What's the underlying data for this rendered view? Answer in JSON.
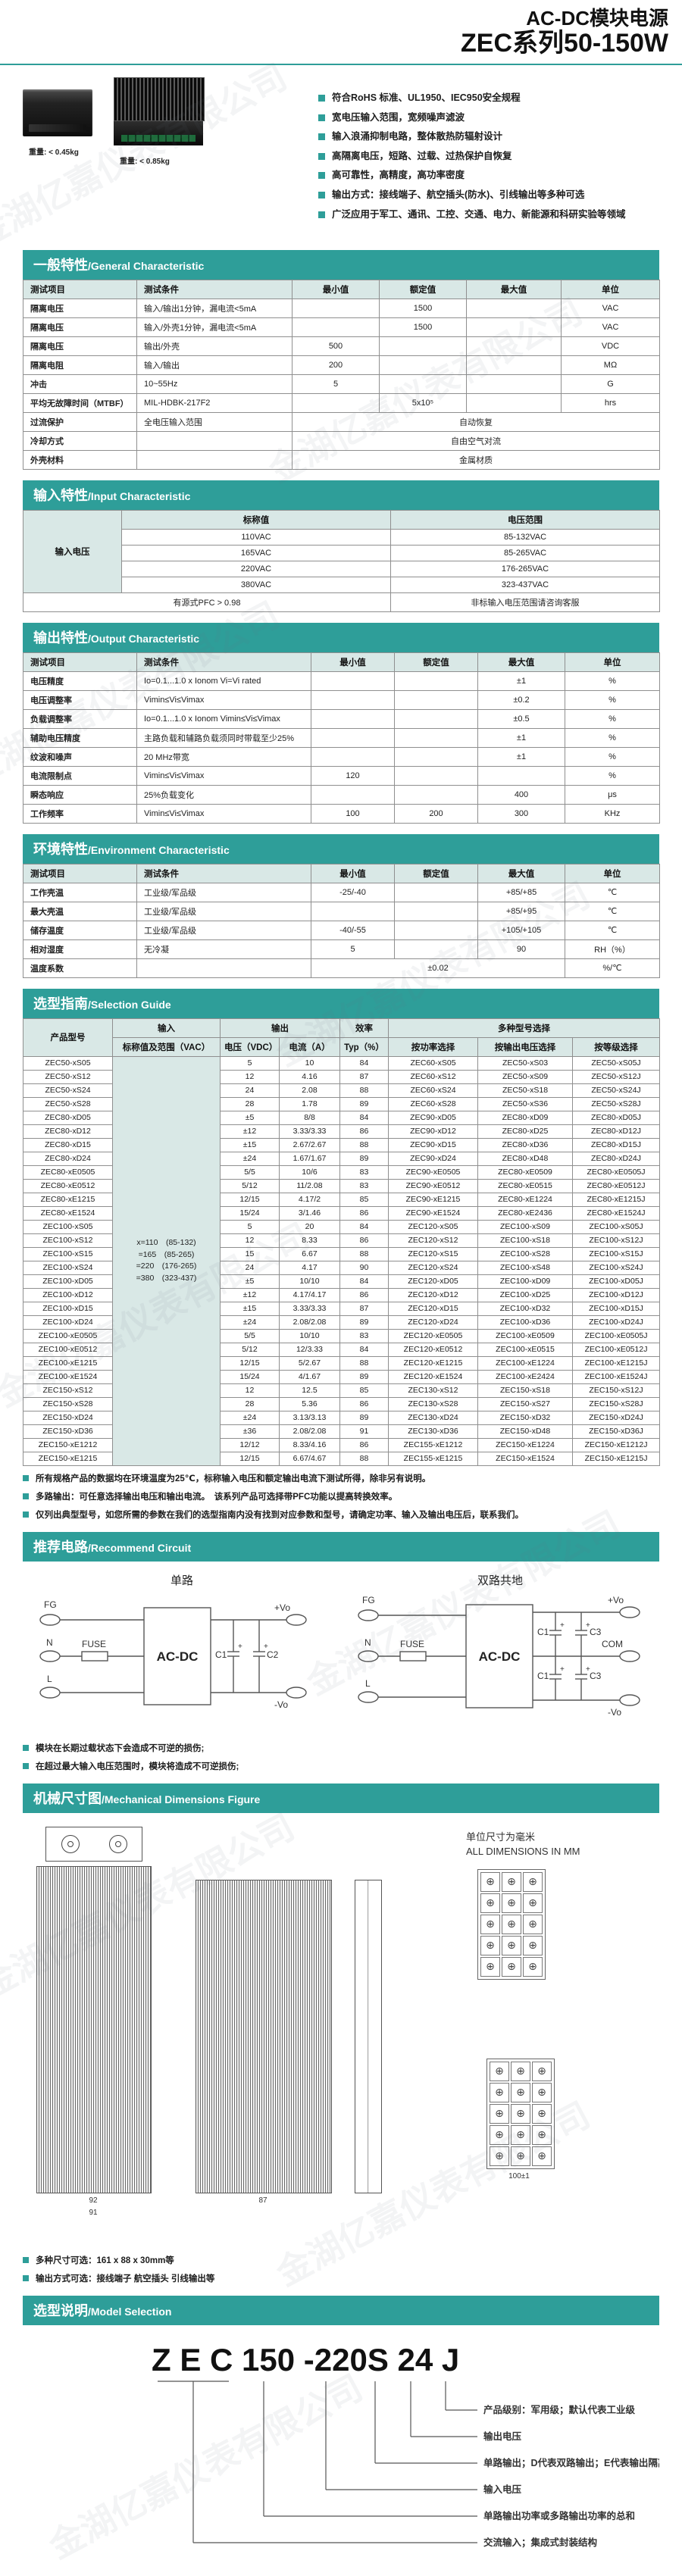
{
  "header": {
    "title_line1": "AC-DC模块电源",
    "title_line2": "ZEC系列50-150W"
  },
  "products": {
    "caption_a": "重量: < 0.45kg",
    "caption_b": "重量: < 0.85kg"
  },
  "features": [
    "符合RoHS 标准、UL1950、IEC950安全规程",
    "宽电压输入范围，宽频噪声滤波",
    "输入浪涌抑制电路，整体散热防辐射设计",
    "高隔离电压，短路、过载、过热保护自恢复",
    "高可靠性，高精度，高功率密度",
    "输出方式：接线端子、航空插头(防水)、引线输出等多种可选",
    "广泛应用于军工、通讯、工控、交通、电力、新能源和科研实验等领域"
  ],
  "sections": {
    "general": {
      "zh": "一般特性",
      "en": "/General Characteristic"
    },
    "input": {
      "zh": "输入特性",
      "en": "/Input Characteristic"
    },
    "output": {
      "zh": "输出特性",
      "en": "/Output Characteristic"
    },
    "env": {
      "zh": "环境特性",
      "en": "/Environment Characteristic"
    },
    "selection": {
      "zh": "选型指南",
      "en": "/Selection Guide"
    },
    "circuit": {
      "zh": "推荐电路",
      "en": "/Recommend Circuit"
    },
    "mech": {
      "zh": "机械尺寸图",
      "en": "/Mechanical Dimensions Figure"
    },
    "model": {
      "zh": "选型说明",
      "en": "/Model Selection"
    }
  },
  "general_table": {
    "widths": [
      150,
      205,
      115,
      115,
      125,
      130
    ],
    "head": [
      [
        "测试项目",
        "测试条件",
        "最小值",
        "额定值",
        "最大值",
        "单位"
      ]
    ],
    "body": [
      [
        "隔离电压",
        "输入/输出1分钟，漏电流<5mA",
        "",
        "1500",
        "",
        "VAC"
      ],
      [
        "隔离电压",
        "输入/外壳1分钟，漏电流<5mA",
        "",
        "1500",
        "",
        "VAC"
      ],
      [
        "隔离电压",
        "输出/外壳",
        "500",
        "",
        "",
        "VDC"
      ],
      [
        "隔离电阻",
        "输入/输出",
        "200",
        "",
        "",
        "MΩ"
      ],
      [
        "冲击",
        "10~55Hz",
        "5",
        "",
        "",
        "G"
      ],
      [
        "平均无故障时间（MTBF）",
        "MIL-HDBK-217F2",
        "",
        "5x10⁵",
        "",
        "hrs"
      ],
      [
        "过流保护",
        "全电压输入范围",
        {
          "t": "自动恢复",
          "c": 4
        }
      ],
      [
        "冷却方式",
        "",
        {
          "t": "自由空气对流",
          "c": 4
        }
      ],
      [
        "外壳材料",
        "",
        {
          "t": "金属材质",
          "c": 4
        }
      ]
    ]
  },
  "input_table": {
    "widths": [
      130,
      355,
      355
    ],
    "head": [
      [
        {
          "t": "输入电压",
          "r": 5
        },
        "标称值",
        "电压范围"
      ]
    ],
    "body": [
      [
        "110VAC",
        "85-132VAC"
      ],
      [
        "165VAC",
        "85-265VAC"
      ],
      [
        "220VAC",
        "176-265VAC"
      ],
      [
        "380VAC",
        "323-437VAC"
      ],
      [
        {
          "t": "有源式PFC > 0.98",
          "c": 2
        },
        "非标输入电压范围请咨询客服"
      ]
    ]
  },
  "output_table": {
    "widths": [
      150,
      230,
      110,
      110,
      115,
      125
    ],
    "head": [
      [
        "测试项目",
        "测试条件",
        "最小值",
        "额定值",
        "最大值",
        "单位"
      ]
    ],
    "body": [
      [
        "电压精度",
        "Io=0.1...1.0 x Ionom Vi=Vi rated",
        "",
        "",
        "±1",
        "%"
      ],
      [
        "电压调整率",
        "Vimin≤Vi≤Vimax",
        "",
        "",
        "±0.2",
        "%"
      ],
      [
        "负载调整率",
        "Io=0.1...1.0 x Ionom Vimin≤Vi≤Vimax",
        "",
        "",
        "±0.5",
        "%"
      ],
      [
        "辅助电压精度",
        "主路负载和辅路负载须同时带载至少25%",
        "",
        "",
        "±1",
        "%"
      ],
      [
        "纹波和噪声",
        "20 MHz带宽",
        "",
        "",
        "±1",
        "%"
      ],
      [
        "电流限制点",
        "Vimin≤Vi≤Vimax",
        "120",
        "",
        "",
        "%"
      ],
      [
        "瞬态响应",
        "25%负载变化",
        "",
        "",
        "400",
        "μs"
      ],
      [
        "工作频率",
        "Vimin≤Vi≤Vimax",
        "100",
        "200",
        "300",
        "KHz"
      ]
    ]
  },
  "env_table": {
    "widths": [
      150,
      230,
      110,
      110,
      115,
      125
    ],
    "head": [
      [
        "测试项目",
        "测试条件",
        "最小值",
        "额定值",
        "最大值",
        "单位"
      ]
    ],
    "body": [
      [
        "工作壳温",
        "工业级/军品级",
        "-25/-40",
        "",
        "+85/+85",
        "℃"
      ],
      [
        "最大壳温",
        "工业级/军品级",
        "",
        "",
        "+85/+95",
        "℃"
      ],
      [
        "储存温度",
        "工业级/军品级",
        "-40/-55",
        "",
        "+105/+105",
        "℃"
      ],
      [
        "相对湿度",
        "无冷凝",
        "5",
        "",
        "90",
        "RH（%）"
      ],
      [
        "温度系数",
        "",
        {
          "t": "±0.02",
          "c": 3
        },
        "%/℃"
      ]
    ]
  },
  "selection_table": {
    "widths": [
      118,
      142,
      78,
      80,
      64,
      118,
      125,
      115
    ],
    "head": [
      [
        {
          "t": "产品型号",
          "r": 2
        },
        "输入",
        {
          "t": "输出",
          "c": 2
        },
        "效率",
        {
          "t": "多种型号选择",
          "c": 3
        }
      ],
      [
        "标称值及范围（VAC）",
        "电压（VDC）",
        "电流（A）",
        "Typ（%）",
        "按功率选择",
        "按输出电压选择",
        "按等级选择"
      ]
    ],
    "body": [
      [
        "ZEC50-xS05",
        {
          "t": "x=110　(85-132)\n=165　(85-265)\n=220　(176-265)\n=380　(323-437)",
          "r": 30,
          "cls": "inputcell"
        },
        "5",
        "10",
        "84",
        "ZEC60-xS05",
        "ZEC50-xS03",
        "ZEC50-xS05J"
      ],
      [
        "ZEC50-xS12",
        "12",
        "4.16",
        "87",
        "ZEC60-xS12",
        "ZEC50-xS09",
        "ZEC50-xS12J"
      ],
      [
        "ZEC50-xS24",
        "24",
        "2.08",
        "88",
        "ZEC60-xS24",
        "ZEC50-xS18",
        "ZEC50-xS24J"
      ],
      [
        "ZEC50-xS28",
        "28",
        "1.78",
        "89",
        "ZEC60-xS28",
        "ZEC50-xS36",
        "ZEC50-xS28J"
      ],
      [
        "ZEC80-xD05",
        "±5",
        "8/8",
        "84",
        "ZEC90-xD05",
        "ZEC80-xD09",
        "ZEC80-xD05J"
      ],
      [
        "ZEC80-xD12",
        "±12",
        "3.33/3.33",
        "86",
        "ZEC90-xD12",
        "ZEC80-xD25",
        "ZEC80-xD12J"
      ],
      [
        "ZEC80-xD15",
        "±15",
        "2.67/2.67",
        "88",
        "ZEC90-xD15",
        "ZEC80-xD36",
        "ZEC80-xD15J"
      ],
      [
        "ZEC80-xD24",
        "±24",
        "1.67/1.67",
        "89",
        "ZEC90-xD24",
        "ZEC80-xD48",
        "ZEC80-xD24J"
      ],
      [
        "ZEC80-xE0505",
        "5/5",
        "10/6",
        "83",
        "ZEC90-xE0505",
        "ZEC80-xE0509",
        "ZEC80-xE0505J"
      ],
      [
        "ZEC80-xE0512",
        "5/12",
        "11/2.08",
        "83",
        "ZEC90-xE0512",
        "ZEC80-xE0515",
        "ZEC80-xE0512J"
      ],
      [
        "ZEC80-xE1215",
        "12/15",
        "4.17/2",
        "85",
        "ZEC90-xE1215",
        "ZEC80-xE1224",
        "ZEC80-xE1215J"
      ],
      [
        "ZEC80-xE1524",
        "15/24",
        "3/1.46",
        "86",
        "ZEC90-xE1524",
        "ZEC80-xE2436",
        "ZEC80-xE1524J"
      ],
      [
        "ZEC100-xS05",
        "5",
        "20",
        "84",
        "ZEC120-xS05",
        "ZEC100-xS09",
        "ZEC100-xS05J"
      ],
      [
        "ZEC100-xS12",
        "12",
        "8.33",
        "86",
        "ZEC120-xS12",
        "ZEC100-xS18",
        "ZEC100-xS12J"
      ],
      [
        "ZEC100-xS15",
        "15",
        "6.67",
        "88",
        "ZEC120-xS15",
        "ZEC100-xS28",
        "ZEC100-xS15J"
      ],
      [
        "ZEC100-xS24",
        "24",
        "4.17",
        "90",
        "ZEC120-xS24",
        "ZEC100-xS48",
        "ZEC100-xS24J"
      ],
      [
        "ZEC100-xD05",
        "±5",
        "10/10",
        "84",
        "ZEC120-xD05",
        "ZEC100-xD09",
        "ZEC100-xD05J"
      ],
      [
        "ZEC100-xD12",
        "±12",
        "4.17/4.17",
        "86",
        "ZEC120-xD12",
        "ZEC100-xD25",
        "ZEC100-xD12J"
      ],
      [
        "ZEC100-xD15",
        "±15",
        "3.33/3.33",
        "87",
        "ZEC120-xD15",
        "ZEC100-xD32",
        "ZEC100-xD15J"
      ],
      [
        "ZEC100-xD24",
        "±24",
        "2.08/2.08",
        "89",
        "ZEC120-xD24",
        "ZEC100-xD36",
        "ZEC100-xD24J"
      ],
      [
        "ZEC100-xE0505",
        "5/5",
        "10/10",
        "83",
        "ZEC120-xE0505",
        "ZEC100-xE0509",
        "ZEC100-xE0505J"
      ],
      [
        "ZEC100-xE0512",
        "5/12",
        "12/3.33",
        "84",
        "ZEC120-xE0512",
        "ZEC100-xE0515",
        "ZEC100-xE0512J"
      ],
      [
        "ZEC100-xE1215",
        "12/15",
        "5/2.67",
        "88",
        "ZEC120-xE1215",
        "ZEC100-xE1224",
        "ZEC100-xE1215J"
      ],
      [
        "ZEC100-xE1524",
        "15/24",
        "4/1.67",
        "89",
        "ZEC120-xE1524",
        "ZEC100-xE2424",
        "ZEC100-xE1524J"
      ],
      [
        "ZEC150-xS12",
        "12",
        "12.5",
        "85",
        "ZEC130-xS12",
        "ZEC150-xS18",
        "ZEC150-xS12J"
      ],
      [
        "ZEC150-xS28",
        "28",
        "5.36",
        "86",
        "ZEC130-xS28",
        "ZEC150-xS27",
        "ZEC150-xS28J"
      ],
      [
        "ZEC150-xD24",
        "±24",
        "3.13/3.13",
        "89",
        "ZEC130-xD24",
        "ZEC150-xD32",
        "ZEC150-xD24J"
      ],
      [
        "ZEC150-xD36",
        "±36",
        "2.08/2.08",
        "91",
        "ZEC130-xD36",
        "ZEC150-xD48",
        "ZEC150-xD36J"
      ],
      [
        "ZEC150-xE1212",
        "12/12",
        "8.33/4.16",
        "86",
        "ZEC155-xE1212",
        "ZEC150-xE1224",
        "ZEC150-xE1212J"
      ],
      [
        "ZEC150-xE1215",
        "12/15",
        "6.67/4.67",
        "88",
        "ZEC155-xE1215",
        "ZEC150-xE1524",
        "ZEC150-xE1215J"
      ]
    ]
  },
  "selection_notes": [
    "所有规格产品的数据均在环境温度为25℃，标称输入电压和额定输出电流下测试所得，除非另有说明。",
    "多路输出：可任意选择输出电压和输出电流。　该系列产品可选择带PFC功能以提高转换效率。",
    "仅列出典型型号，如您所需的参数在我们的选型指南内没有找到对应参数和型号，请确定功率、输入及输出电压后，联系我们。"
  ],
  "circuit": {
    "left_title": "单路",
    "right_title": "双路共地",
    "labels": {
      "fg": "FG",
      "n": "N",
      "l": "L",
      "fuse": "FUSE",
      "acdc": "AC-DC",
      "c1": "C1",
      "c2": "C2",
      "c3": "C3",
      "vo_plus": "+Vo",
      "vo_minus": "-Vo",
      "com": "COM",
      "plus": "+"
    }
  },
  "circuit_notes": [
    "模块在长期过载状态下会造成不可逆的损伤;",
    "在超过最大输入电压范围时，模块将造成不可逆损伤;"
  ],
  "mech": {
    "unit_note_zh": "单位尺寸为毫米",
    "unit_note_en": "ALL DIMENSIONS IN MM",
    "dims": {
      "d1": "92",
      "d2": "91",
      "d3": "87",
      "d4": "100±1"
    },
    "pin_grid": {
      "rows": 5,
      "cols": 3,
      "symbol": "⊕"
    },
    "notes": [
      "多种尺寸可选：161 x 88 x 30mm等",
      "输出方式可选：接线端子 航空插头 引线输出等"
    ]
  },
  "model_selection": {
    "code": "Z E C 150 -220S 24 J",
    "labels": [
      "产品级别：军用级；默认代表工业级",
      "输出电压",
      "单路输出；D代表双路输出；E代表输出隔离",
      "输入电压",
      "单路输出功率或多路输出功率的总和",
      "交流输入；集成式封装结构"
    ]
  },
  "colors": {
    "accent": "#2E9E99",
    "table_head": "#D9E8E6"
  }
}
